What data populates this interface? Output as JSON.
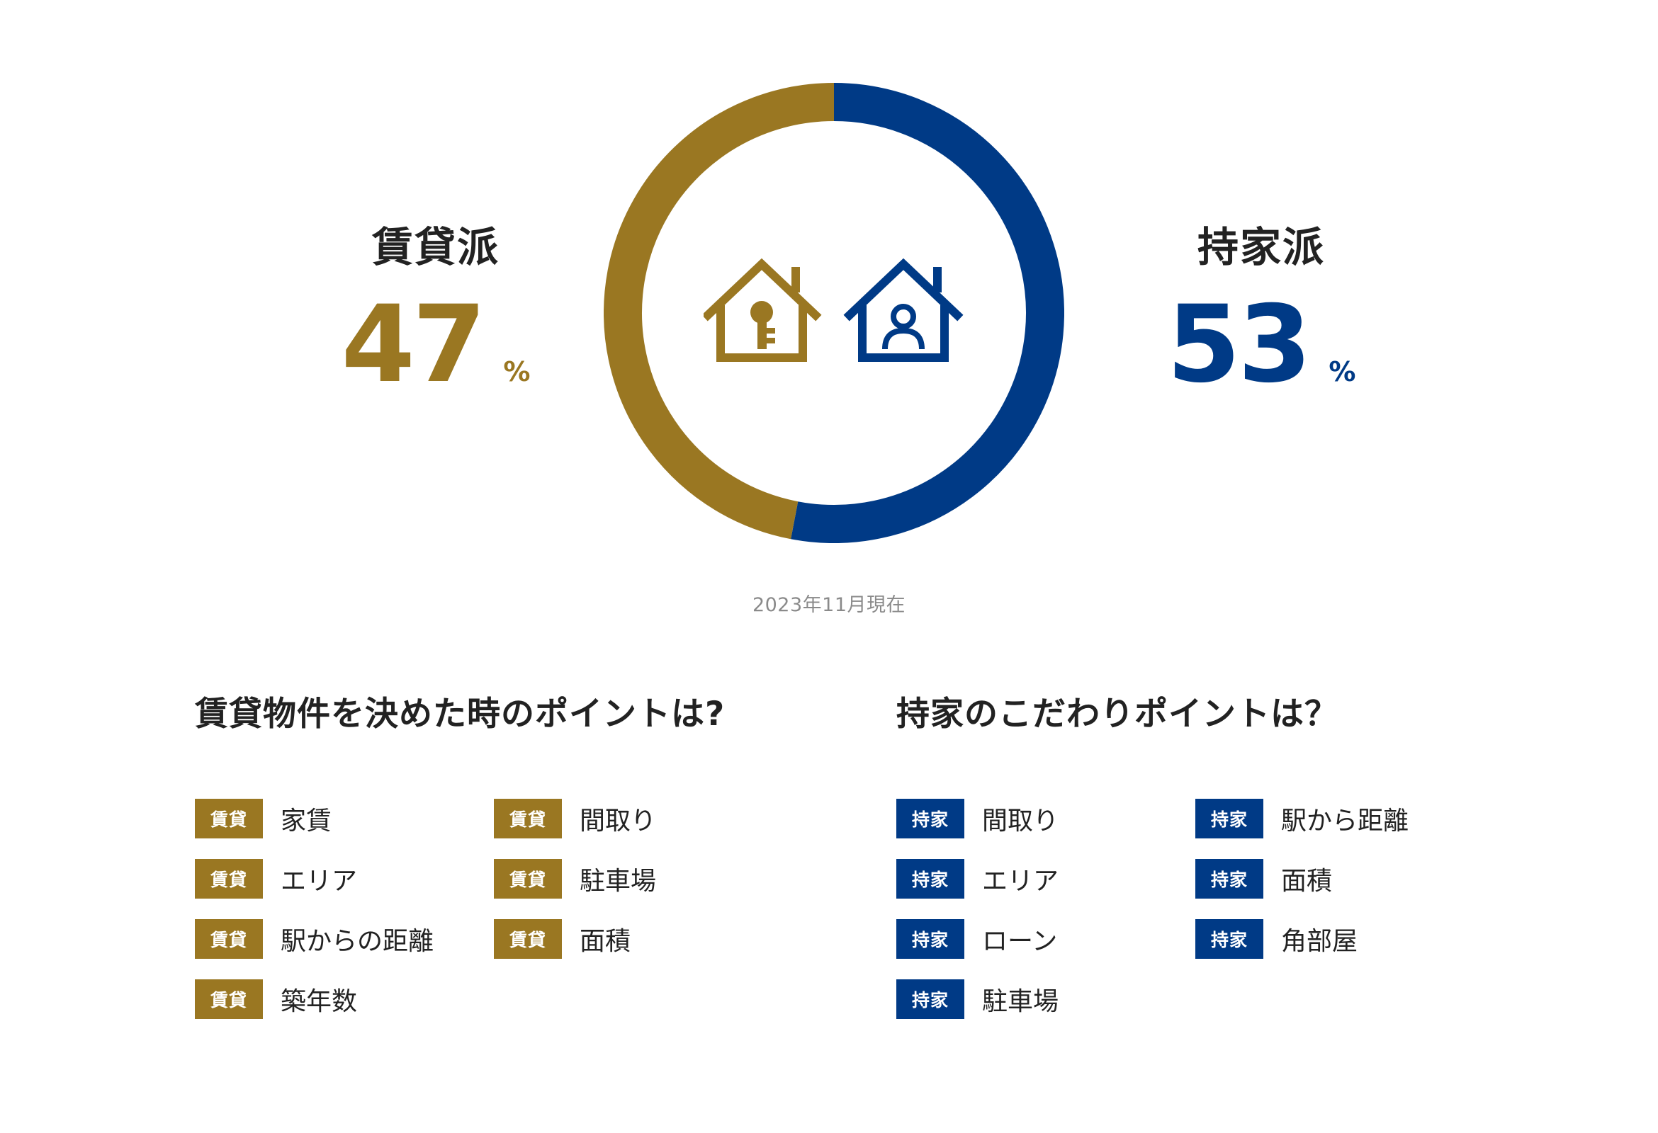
{
  "chart_data": {
    "type": "pie",
    "labels": [
      "賃貸派",
      "持家派"
    ],
    "values": [
      47,
      53
    ],
    "unit": "%",
    "colors": [
      "#9a7722",
      "#003a86"
    ]
  },
  "header": {
    "rent_label": "賃貸派",
    "rent_value": "47",
    "own_label": "持家派",
    "own_value": "53",
    "unit": "%",
    "icons": [
      "key-house-icon",
      "person-house-icon"
    ]
  },
  "as_of": "2023年11月現在",
  "rent_section": {
    "title": "賃貸物件を決めた時のポイントは?",
    "badge": "賃貸",
    "items": [
      "家賃",
      "エリア",
      "駅からの距離",
      "築年数",
      "間取り",
      "駐車場",
      "面積"
    ]
  },
  "own_section": {
    "title": "持家のこだわりポイントは？",
    "badge": "持家",
    "items": [
      "間取り",
      "エリア",
      "ローン",
      "駐車場",
      "駅から距離",
      "面積",
      "角部屋"
    ]
  }
}
